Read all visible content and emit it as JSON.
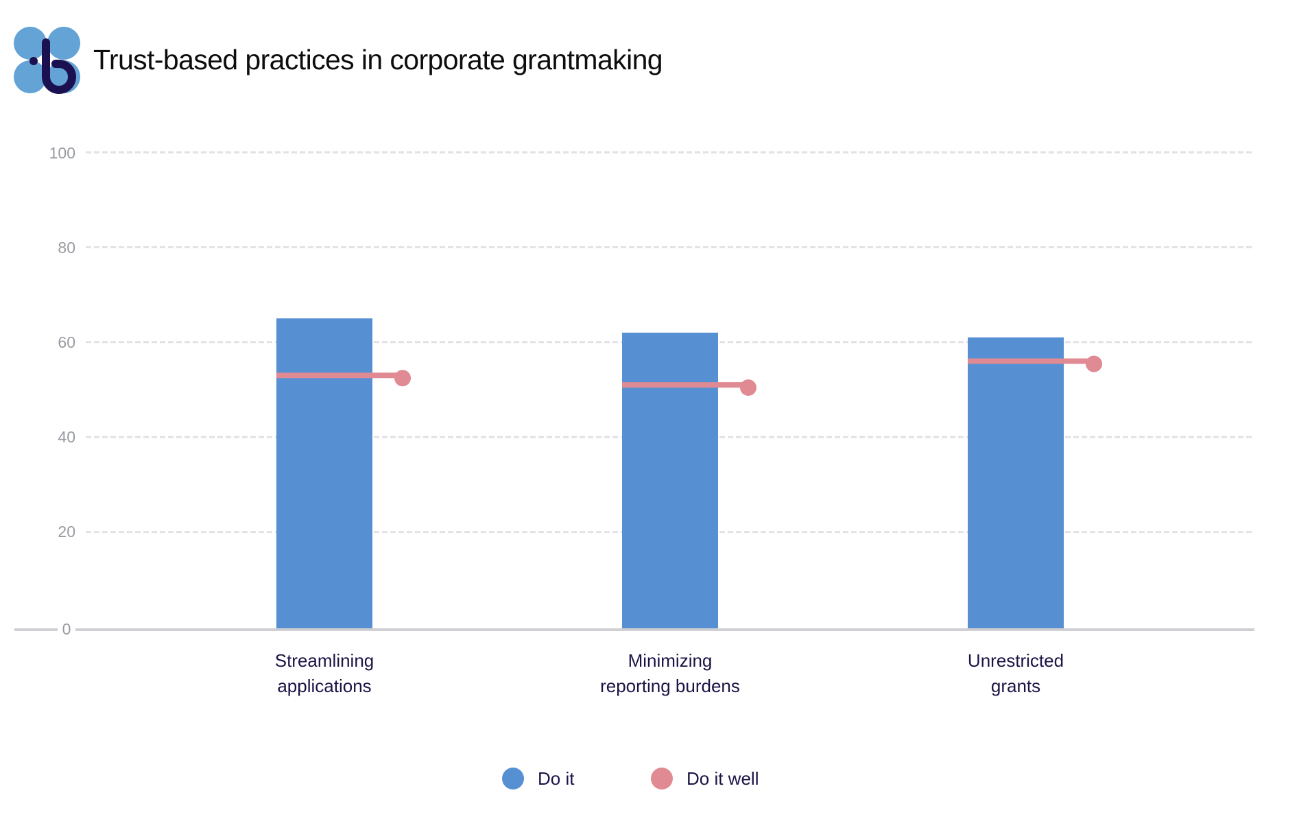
{
  "header": {
    "title": "Trust-based practices in corporate grantmaking",
    "logo_icon": "brand-logo-b-clover"
  },
  "colors": {
    "do_it": "#5690d2",
    "do_it_well": "#e08a93",
    "grid": "#e1e2e6",
    "baseline": "#d0d0d4",
    "axis_text": "#979aa0",
    "label_text": "#1a1446",
    "logo_light": "#64a3d6",
    "logo_dark": "#1b1150"
  },
  "yaxis": {
    "ticks": [
      "0",
      "20",
      "40",
      "60",
      "80",
      "100"
    ]
  },
  "categories": [
    {
      "line1": "Streamlining",
      "line2": "applications"
    },
    {
      "line1": "Minimizing",
      "line2": "reporting burdens"
    },
    {
      "line1": "Unrestricted",
      "line2": "grants"
    }
  ],
  "legend": [
    {
      "label": "Do it",
      "color": "#5690d2"
    },
    {
      "label": "Do it well",
      "color": "#e08a93"
    }
  ],
  "chart_data": {
    "type": "bar",
    "title": "Trust-based practices in corporate grantmaking",
    "xlabel": "",
    "ylabel": "",
    "categories": [
      "Streamlining applications",
      "Minimizing reporting burdens",
      "Unrestricted grants"
    ],
    "series": [
      {
        "name": "Do it",
        "type": "bar",
        "color": "#5690d2",
        "values": [
          65,
          62,
          61
        ]
      },
      {
        "name": "Do it well",
        "type": "marker-line",
        "color": "#e08a93",
        "values": [
          53,
          51,
          56
        ]
      }
    ],
    "ylim": [
      0,
      100
    ],
    "yticks": [
      0,
      20,
      40,
      60,
      80,
      100
    ],
    "grid": true,
    "grid_style": "dashed horizontal",
    "legend_position": "bottom-center"
  }
}
